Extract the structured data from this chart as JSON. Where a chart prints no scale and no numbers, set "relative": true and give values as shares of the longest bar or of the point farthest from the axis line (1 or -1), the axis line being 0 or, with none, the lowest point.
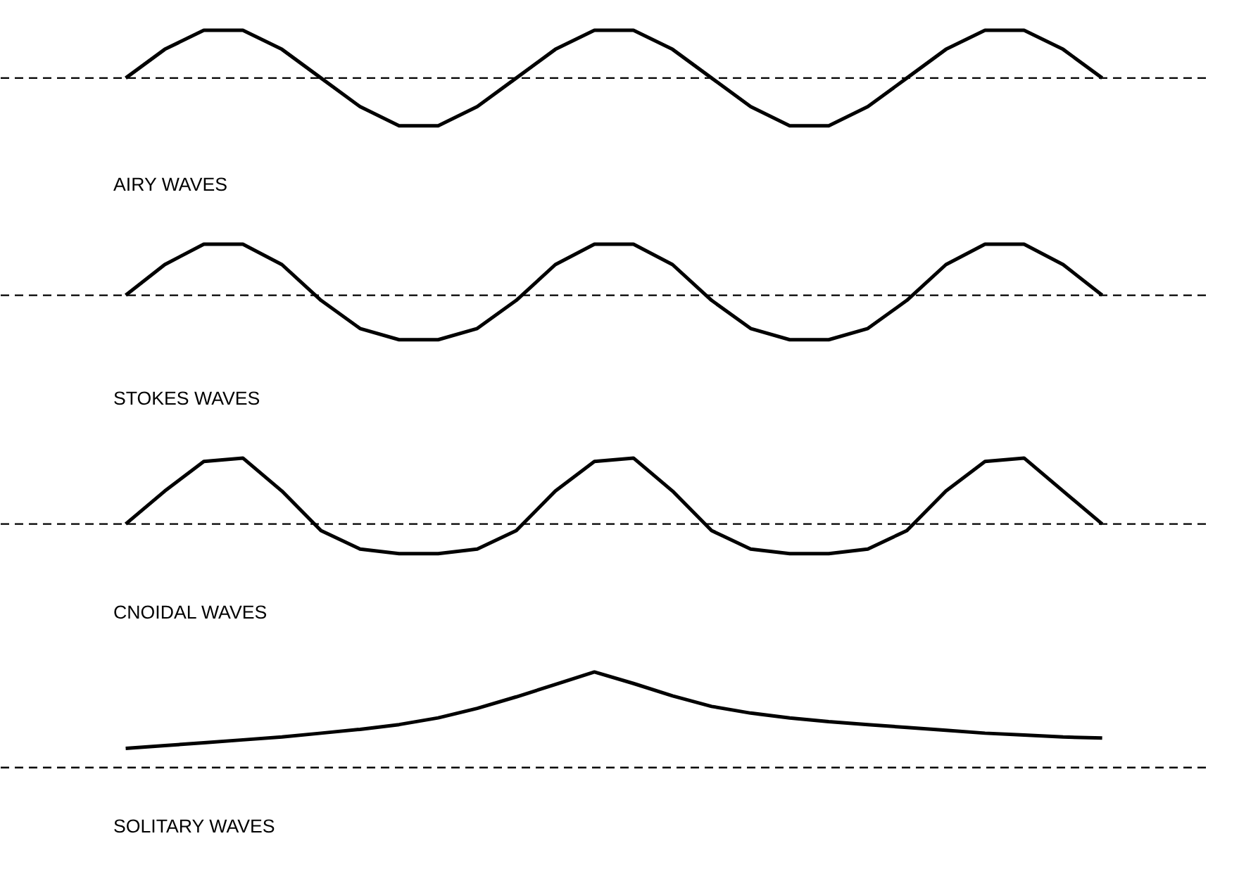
{
  "chart_data": [
    {
      "type": "line",
      "relative": true,
      "annotations": [
        "AIRY WAVES"
      ],
      "categories": [
        null,
        null,
        null,
        null,
        null,
        null,
        null,
        null,
        null,
        null,
        null,
        null,
        null,
        null,
        null,
        null,
        null,
        null,
        null,
        null,
        null,
        null,
        null,
        null,
        null,
        null
      ],
      "series": [
        {
          "color": "#000000",
          "values": [
            0,
            0.6,
            1,
            1,
            0.6,
            0,
            -0.6,
            -1,
            -1,
            -0.6,
            0,
            0.6,
            1,
            1,
            0.6,
            0,
            -0.6,
            -1,
            -1,
            -0.6,
            0,
            0.6,
            1,
            1,
            0.6,
            0
          ]
        }
      ],
      "ref_lines": [
        {
          "axis": "y",
          "value": 0,
          "color": "#000000",
          "line_style": "dashed"
        }
      ]
    },
    {
      "type": "line",
      "relative": true,
      "annotations": [
        "STOKES WAVES"
      ],
      "categories": [
        null,
        null,
        null,
        null,
        null,
        null,
        null,
        null,
        null,
        null,
        null,
        null,
        null,
        null,
        null,
        null,
        null,
        null,
        null,
        null,
        null,
        null,
        null,
        null,
        null,
        null
      ],
      "series": [
        {
          "color": "#000000",
          "values": [
            0,
            0.6,
            1,
            1,
            0.6,
            -0.1,
            -0.65,
            -0.87,
            -0.87,
            -0.65,
            -0.1,
            0.6,
            1,
            1,
            0.6,
            -0.1,
            -0.65,
            -0.87,
            -0.87,
            -0.65,
            -0.1,
            0.6,
            1,
            1,
            0.6,
            0
          ]
        }
      ],
      "ref_lines": [
        {
          "axis": "y",
          "value": 0,
          "color": "#000000",
          "line_style": "dashed"
        }
      ]
    },
    {
      "type": "line",
      "relative": true,
      "annotations": [
        "CNOIDAL WAVES"
      ],
      "categories": [
        null,
        null,
        null,
        null,
        null,
        null,
        null,
        null,
        null,
        null,
        null,
        null,
        null,
        null,
        null,
        null,
        null,
        null,
        null,
        null,
        null,
        null,
        null,
        null,
        null,
        null
      ],
      "series": [
        {
          "color": "#000000",
          "values": [
            0,
            0.5,
            0.95,
            1,
            0.5,
            -0.1,
            -0.38,
            -0.45,
            -0.45,
            -0.38,
            -0.1,
            0.5,
            0.95,
            1,
            0.5,
            -0.1,
            -0.38,
            -0.45,
            -0.45,
            -0.38,
            -0.1,
            0.5,
            0.95,
            1,
            0.5,
            0
          ]
        }
      ],
      "ref_lines": [
        {
          "axis": "y",
          "value": 0,
          "color": "#000000",
          "line_style": "dashed"
        }
      ]
    },
    {
      "type": "line",
      "relative": true,
      "annotations": [
        "SOLITARY WAVES"
      ],
      "categories": [
        null,
        null,
        null,
        null,
        null,
        null,
        null,
        null,
        null,
        null,
        null,
        null,
        null,
        null,
        null,
        null,
        null,
        null,
        null,
        null,
        null,
        null,
        null,
        null,
        null,
        null
      ],
      "series": [
        {
          "color": "#000000",
          "values": [
            0.2,
            0.23,
            0.26,
            0.29,
            0.32,
            0.36,
            0.4,
            0.45,
            0.52,
            0.62,
            0.74,
            0.87,
            1,
            0.88,
            0.75,
            0.64,
            0.57,
            0.52,
            0.48,
            0.45,
            0.42,
            0.39,
            0.36,
            0.34,
            0.32,
            0.31
          ]
        }
      ],
      "ref_lines": [
        {
          "axis": "y",
          "value": 0,
          "color": "#000000",
          "line_style": "dashed"
        }
      ]
    }
  ]
}
